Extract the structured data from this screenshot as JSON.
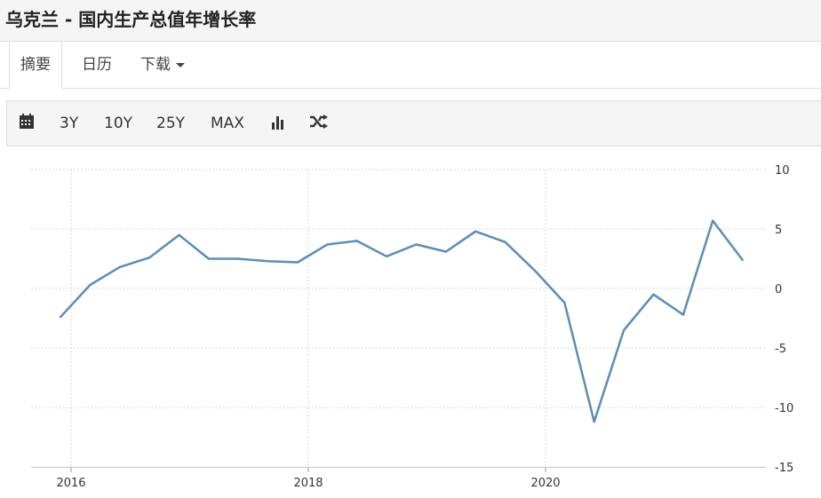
{
  "header": {
    "title": "乌克兰 - 国内生产总值年增长率"
  },
  "tabs": [
    {
      "label": "摘要",
      "active": true
    },
    {
      "label": "日历"
    },
    {
      "label": "下载",
      "icon": "caret-down-icon"
    }
  ],
  "toolbar": {
    "calendar_icon": "calendar-icon",
    "ranges": [
      "3Y",
      "10Y",
      "25Y",
      "MAX"
    ],
    "bar_chart_icon": "bar-chart-icon",
    "shuffle_icon": "shuffle-icon"
  },
  "chart_data": {
    "type": "line",
    "title": "",
    "xlabel": "",
    "ylabel": "",
    "x": [
      "2015-Q4",
      "2016-Q1",
      "2016-Q2",
      "2016-Q3",
      "2016-Q4",
      "2017-Q1",
      "2017-Q2",
      "2017-Q3",
      "2017-Q4",
      "2018-Q1",
      "2018-Q2",
      "2018-Q3",
      "2018-Q4",
      "2019-Q1",
      "2019-Q2",
      "2019-Q3",
      "2019-Q4",
      "2020-Q1",
      "2020-Q2",
      "2020-Q3",
      "2020-Q4",
      "2021-Q1",
      "2021-Q2",
      "2021-Q3"
    ],
    "values": [
      -2.4,
      0.3,
      1.8,
      2.6,
      4.5,
      2.5,
      2.5,
      2.3,
      2.2,
      3.7,
      4.0,
      2.7,
      3.7,
      3.1,
      4.8,
      3.9,
      1.5,
      -1.2,
      -11.2,
      -3.5,
      -0.5,
      -2.2,
      5.7,
      2.4
    ],
    "xticks": [
      "2016",
      "2018",
      "2020"
    ],
    "yticks": [
      "10",
      "5",
      "0",
      "-5",
      "-10",
      "-15"
    ],
    "ylim": [
      -15,
      10
    ],
    "y_axis_side": "right",
    "grid": true,
    "line_color": "#5b8db8"
  }
}
